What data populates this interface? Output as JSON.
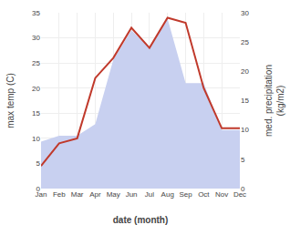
{
  "chart_data": {
    "type": "line",
    "categories": [
      "Jan",
      "Feb",
      "Mar",
      "Apr",
      "May",
      "Jun",
      "Jul",
      "Aug",
      "Sep",
      "Oct",
      "Nov",
      "Dec"
    ],
    "series": [
      {
        "type": "area",
        "color": "#c8d0f0",
        "axis": "y2",
        "values": [
          8.0,
          9.0,
          9.0,
          11.0,
          22.0,
          27.0,
          24.0,
          29.0,
          18.0,
          18.0,
          10.0,
          10.0
        ]
      },
      {
        "type": "line",
        "color": "#c0392b",
        "values": [
          4.5,
          9.0,
          10.0,
          22.0,
          26.0,
          32.0,
          28.0,
          34.0,
          33.0,
          20.0,
          12.0,
          12.0
        ]
      }
    ],
    "xlabel": "date (month)",
    "ylabel": "max temp (C)",
    "y2label": "med. precipitation\n(kg/m2)",
    "ylim": [
      0,
      35
    ],
    "yticks": [
      0,
      5,
      10,
      15,
      20,
      25,
      30,
      35
    ],
    "y2lim": [
      0,
      30
    ],
    "y2ticks": [
      0,
      5,
      10,
      15,
      20,
      25,
      30
    ],
    "grid": true
  }
}
